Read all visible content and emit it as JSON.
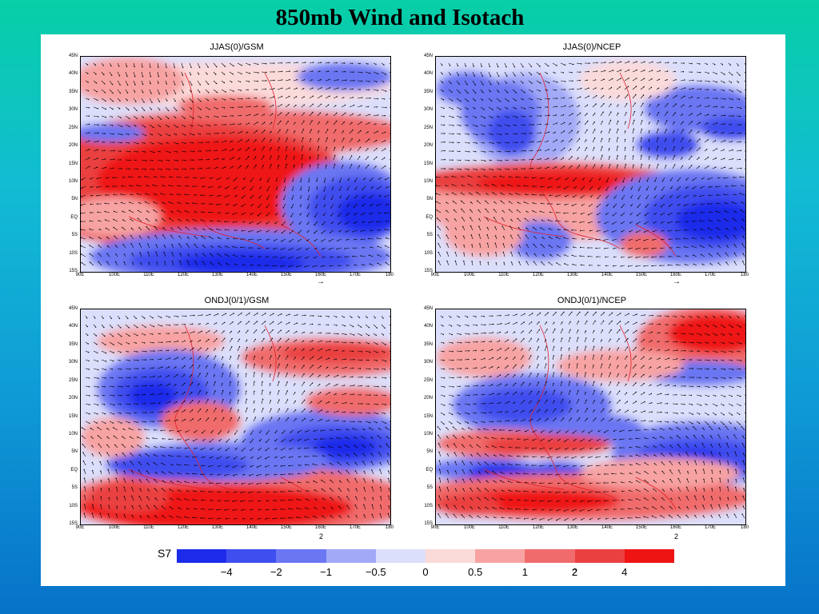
{
  "title": "850mb Wind and Isotach",
  "colors": {
    "levels": [
      "#1c2bea",
      "#3f4eee",
      "#6a76f2",
      "#a2a9f7",
      "#dcdffb",
      "#fbdada",
      "#f7a3a3",
      "#f06c6c",
      "#ea4040",
      "#ee1414"
    ]
  },
  "panels": [
    {
      "title": "JJAS(0)/GSM",
      "ref_label": "→"
    },
    {
      "title": "JJAS(0)/NCEP",
      "ref_label": "→"
    },
    {
      "title": "ONDJ(0/1)/GSM",
      "ref_label": "2"
    },
    {
      "title": "ONDJ(0/1)/NCEP",
      "ref_label": "2"
    }
  ],
  "lat_labels": [
    "45N",
    "40N",
    "35N",
    "30N",
    "25N",
    "20N",
    "15N",
    "10N",
    "5N",
    "EQ",
    "5S",
    "10S",
    "15S"
  ],
  "lon_labels": [
    "90E",
    "100E",
    "110E",
    "120E",
    "130E",
    "140E",
    "150E",
    "160E",
    "170E",
    "180"
  ],
  "colorbar": {
    "ticks": [
      "−4",
      "−2",
      "−1",
      "−0.5",
      "0",
      "0.5",
      "1",
      "2",
      "4"
    ]
  },
  "stray_mark": "S7",
  "legend_ref": "2"
}
